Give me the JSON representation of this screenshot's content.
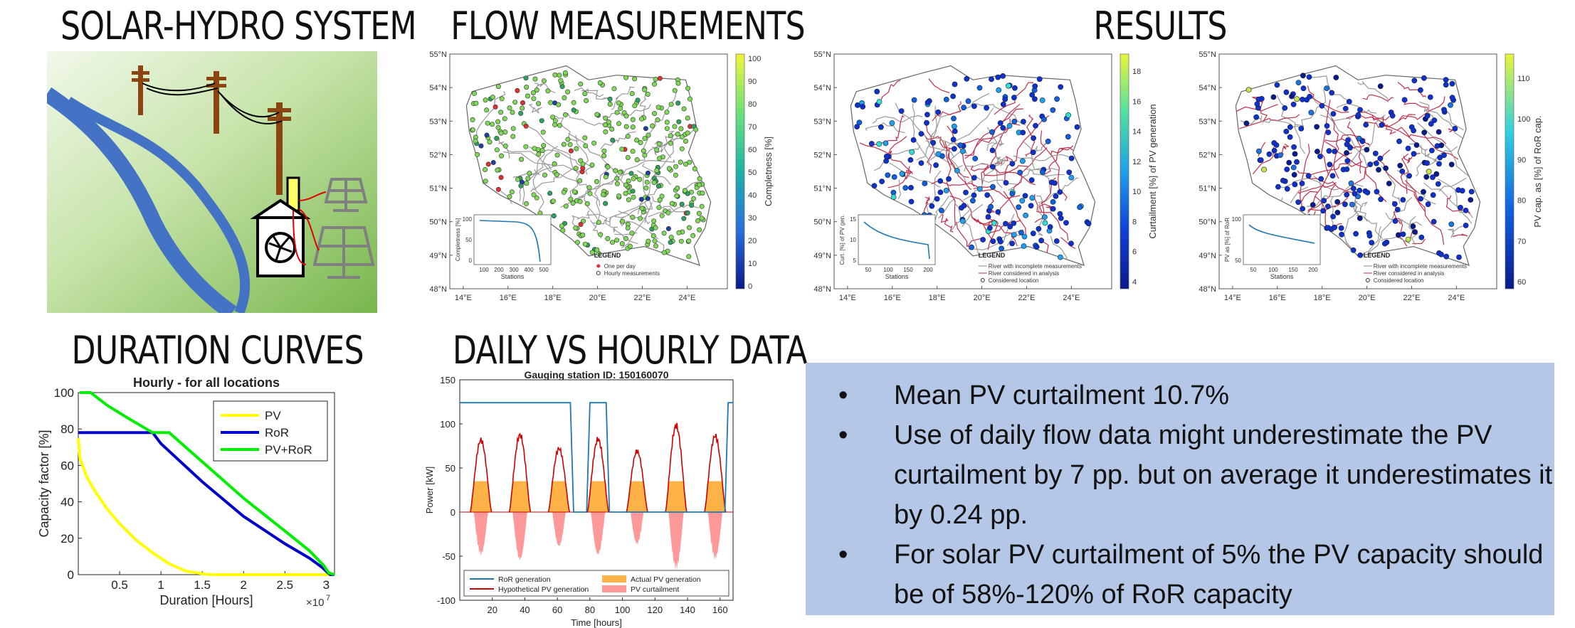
{
  "titles": {
    "system": "SOLAR-HYDRO SYSTEM",
    "flow": "FLOW MEASUREMENTS",
    "results": "RESULTS",
    "duration": "DURATION CURVES",
    "daily": "DAILY VS HOURLY DATA"
  },
  "maps": {
    "lat_ticks": [
      "55°N",
      "54°N",
      "53°N",
      "52°N",
      "51°N",
      "50°N",
      "49°N",
      "48°N"
    ],
    "lon_ticks": [
      "14°E",
      "16°E",
      "18°E",
      "20°E",
      "22°E",
      "24°E"
    ],
    "flow": {
      "colorbar_label": "Completness [%]",
      "colorbar_ticks": [
        "100",
        "90",
        "80",
        "70",
        "60",
        "50",
        "40",
        "30",
        "20",
        "10",
        "0"
      ],
      "inset_ylabel": "Completness [%]",
      "inset_xlabel": "Stations",
      "inset_y_ticks": [
        "100",
        "50",
        "0"
      ],
      "inset_x_ticks": [
        "100",
        "200",
        "300",
        "400",
        "500"
      ],
      "legend_title": "LEGEND",
      "legend_items": [
        "One per day",
        "Hourly measurements"
      ]
    },
    "curtail": {
      "colorbar_label": "Curtailment [%] of PV generation",
      "colorbar_ticks": [
        "18",
        "16",
        "14",
        "12",
        "10",
        "8",
        "6",
        "4"
      ],
      "inset_ylabel": "Curt. [%] of PV gen.",
      "inset_xlabel": "Stations",
      "inset_y_ticks": [
        "15",
        "10",
        "5"
      ],
      "inset_x_ticks": [
        "50",
        "100",
        "150",
        "200"
      ],
      "legend_title": "LEGEND",
      "legend_items": [
        "River with incomplete measurements",
        "River considered in analysis",
        "Considered location"
      ]
    },
    "capacity": {
      "colorbar_label": "PV cap. as [%] of RoR cap.",
      "colorbar_ticks": [
        "110",
        "100",
        "90",
        "80",
        "70",
        "60"
      ],
      "inset_ylabel": "PV as [%] of RoR",
      "inset_xlabel": "Stations",
      "inset_y_ticks": [
        "100",
        "50"
      ],
      "inset_x_ticks": [
        "50",
        "100",
        "150",
        "200"
      ],
      "legend_title": "LEGEND",
      "legend_items": [
        "River with incomplete measurements",
        "River considered in analysis",
        "Considered location"
      ]
    }
  },
  "chart_data": [
    {
      "type": "line",
      "title": "Hourly - for all locations",
      "xlabel": "Duration [Hours]",
      "ylabel": "Capacity factor [%]",
      "x_multiplier": "×10",
      "x_multiplier_exp": "7",
      "xlim": [
        0,
        3.1
      ],
      "ylim": [
        0,
        100
      ],
      "x_ticks": [
        0.5,
        1,
        1.5,
        2,
        2.5,
        3
      ],
      "y_ticks": [
        0,
        20,
        40,
        60,
        80,
        100
      ],
      "legend_position": "top-right",
      "series": [
        {
          "name": "PV",
          "color": "#ffff00",
          "x": [
            0,
            0.02,
            0.1,
            0.2,
            0.35,
            0.5,
            0.7,
            0.9,
            1.1,
            1.3,
            1.5,
            1.6,
            3.1
          ],
          "y": [
            75,
            64,
            54,
            46,
            36,
            28,
            19,
            12,
            6,
            2,
            0.5,
            0,
            0
          ]
        },
        {
          "name": "RoR",
          "color": "#0000cc",
          "x": [
            0,
            0.9,
            1.0,
            1.5,
            2.0,
            2.5,
            2.8,
            2.95,
            3.02,
            3.05,
            3.1
          ],
          "y": [
            78,
            78,
            72,
            51,
            32,
            17,
            9,
            4,
            1,
            0,
            0
          ]
        },
        {
          "name": "PV+RoR",
          "color": "#00ee00",
          "x": [
            0.02,
            0.15,
            0.35,
            0.6,
            0.9,
            1.1,
            1.5,
            2.0,
            2.5,
            2.8,
            2.97,
            3.03,
            3.1
          ],
          "y": [
            100,
            100,
            93,
            86,
            78,
            78,
            62,
            42,
            24,
            13,
            5,
            1,
            0
          ]
        }
      ]
    },
    {
      "type": "line",
      "title": "Gauging station ID: 150160070",
      "xlabel": "Time [hours]",
      "ylabel": "Power [kW]",
      "xlim": [
        0,
        168
      ],
      "ylim": [
        -100,
        150
      ],
      "x_ticks": [
        20,
        40,
        60,
        80,
        100,
        120,
        140,
        160
      ],
      "y_ticks": [
        -100,
        -50,
        0,
        50,
        100,
        150
      ],
      "legend_position": "bottom",
      "series": [
        {
          "name": "RoR generation",
          "color": "#1f77b4",
          "x": [
            0,
            68,
            70,
            78,
            80,
            90,
            92,
            163,
            165,
            168
          ],
          "y": [
            124,
            124,
            0,
            0,
            124,
            124,
            0,
            0,
            124,
            124
          ],
          "note_segments": [
            [
              0,
              68
            ],
            [
              78,
              90
            ],
            [
              152,
              163
            ]
          ]
        },
        {
          "name": "Hypothetical PV generation",
          "color": "#cc0000",
          "day_peaks": [
            {
              "day": 1,
              "peak": 85
            },
            {
              "day": 2,
              "peak": 91
            },
            {
              "day": 3,
              "peak": 75
            },
            {
              "day": 4,
              "peak": 86
            },
            {
              "day": 5,
              "peak": 72
            },
            {
              "day": 6,
              "peak": 102
            },
            {
              "day": 7,
              "peak": 90
            }
          ]
        },
        {
          "name": "Actual PV generation",
          "color": "#ffb347",
          "cap": 35
        },
        {
          "name": "PV curtailment",
          "color": "#ff9999",
          "day_min": [
            {
              "day": 1,
              "min": -50
            },
            {
              "day": 2,
              "min": -56
            },
            {
              "day": 3,
              "min": -40
            },
            {
              "day": 4,
              "min": -50
            },
            {
              "day": 5,
              "min": -38
            },
            {
              "day": 6,
              "min": -67
            },
            {
              "day": 7,
              "min": -55
            }
          ]
        }
      ]
    }
  ],
  "bullets": [
    {
      "bullet": "•",
      "text": "Mean PV curtailment 10.7%"
    },
    {
      "bullet": "•",
      "text": "Use of daily flow data might underestimate the PV curtailment by 7 pp. but on average it underestimates it by 0.24 pp."
    },
    {
      "bullet": "•",
      "text": "For solar PV curtailment of 5% the PV capacity should be of 58%-120% of RoR capacity"
    }
  ],
  "colors": {
    "bullet_box": "#b4c7e7",
    "river": "#4472c4",
    "pole": "#8b4513"
  }
}
